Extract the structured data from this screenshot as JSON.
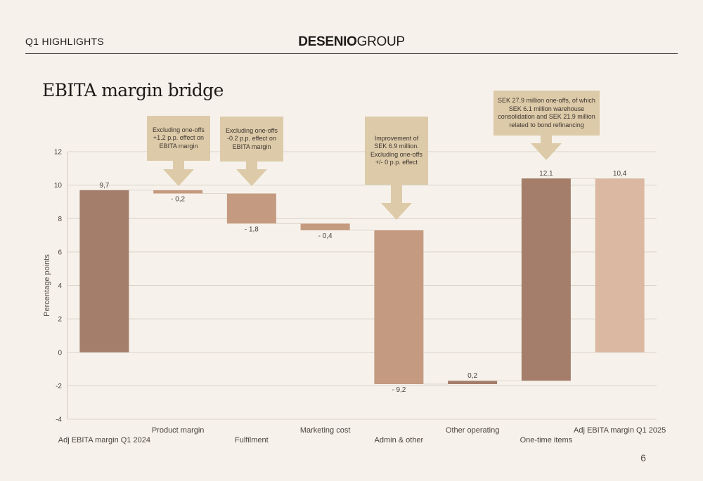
{
  "header": {
    "section": "Q1 HIGHLIGHTS",
    "brand_bold": "DESENIO",
    "brand_light": "GROUP"
  },
  "title": "EBITA margin bridge",
  "page_number": "6",
  "callouts": [
    {
      "lines": [
        "Excluding one-offs",
        "+1.2 p.p. effect on",
        "EBITA margin"
      ]
    },
    {
      "lines": [
        "Excluding one-offs",
        "-0.2 p.p. effect on",
        "EBITA margin"
      ]
    },
    {
      "lines": [
        "Improvement of",
        "SEK 6.9 million.",
        "Excluding one-offs",
        "+/- 0 p.p. effect"
      ]
    },
    {
      "lines": [
        "SEK 27.9 million one-offs, of which",
        "SEK 6.1 million warehouse",
        "consolidation and SEK 21.9 million",
        "related to bond refinancing"
      ]
    }
  ],
  "colors": {
    "background": "#f6f2eb",
    "dark_bar": "#a47e6a",
    "mid_bar": "#c49a80",
    "light_bar": "#dbb8a2",
    "callout": "#ddcaa8"
  },
  "chart_data": {
    "type": "bar",
    "subtype": "waterfall",
    "ylabel": "Percentage points",
    "ylim": [
      -4,
      12
    ],
    "yticks": [
      -4,
      -2,
      0,
      2,
      4,
      6,
      8,
      10,
      12
    ],
    "grid": true,
    "bars": [
      {
        "category": "Adj EBITA margin Q1 2024",
        "start": 0,
        "end": 9.7,
        "label": "9,7",
        "color": "#a47e6a",
        "kind": "total"
      },
      {
        "category": "Product margin",
        "start": 9.7,
        "end": 9.5,
        "label": "- 0,2",
        "color": "#c49a80",
        "kind": "delta"
      },
      {
        "category": "Fulfilment",
        "start": 9.5,
        "end": 7.7,
        "label": "- 1,8",
        "color": "#c49a80",
        "kind": "delta"
      },
      {
        "category": "Marketing cost",
        "start": 7.7,
        "end": 7.3,
        "label": "- 0,4",
        "color": "#c49a80",
        "kind": "delta"
      },
      {
        "category": "Admin & other",
        "start": 7.3,
        "end": -1.9,
        "label": "- 9,2",
        "color": "#c49a80",
        "kind": "delta"
      },
      {
        "category": "Other operating",
        "start": -1.9,
        "end": -1.7,
        "label": "0,2",
        "color": "#a47e6a",
        "kind": "delta"
      },
      {
        "category": "One-time items",
        "start": -1.7,
        "end": 10.4,
        "label": "12,1",
        "color": "#a47e6a",
        "kind": "delta"
      },
      {
        "category": "Adj EBITA margin Q1 2025",
        "start": 0,
        "end": 10.4,
        "label": "10,4",
        "color": "#dbb8a2",
        "kind": "total"
      }
    ]
  }
}
